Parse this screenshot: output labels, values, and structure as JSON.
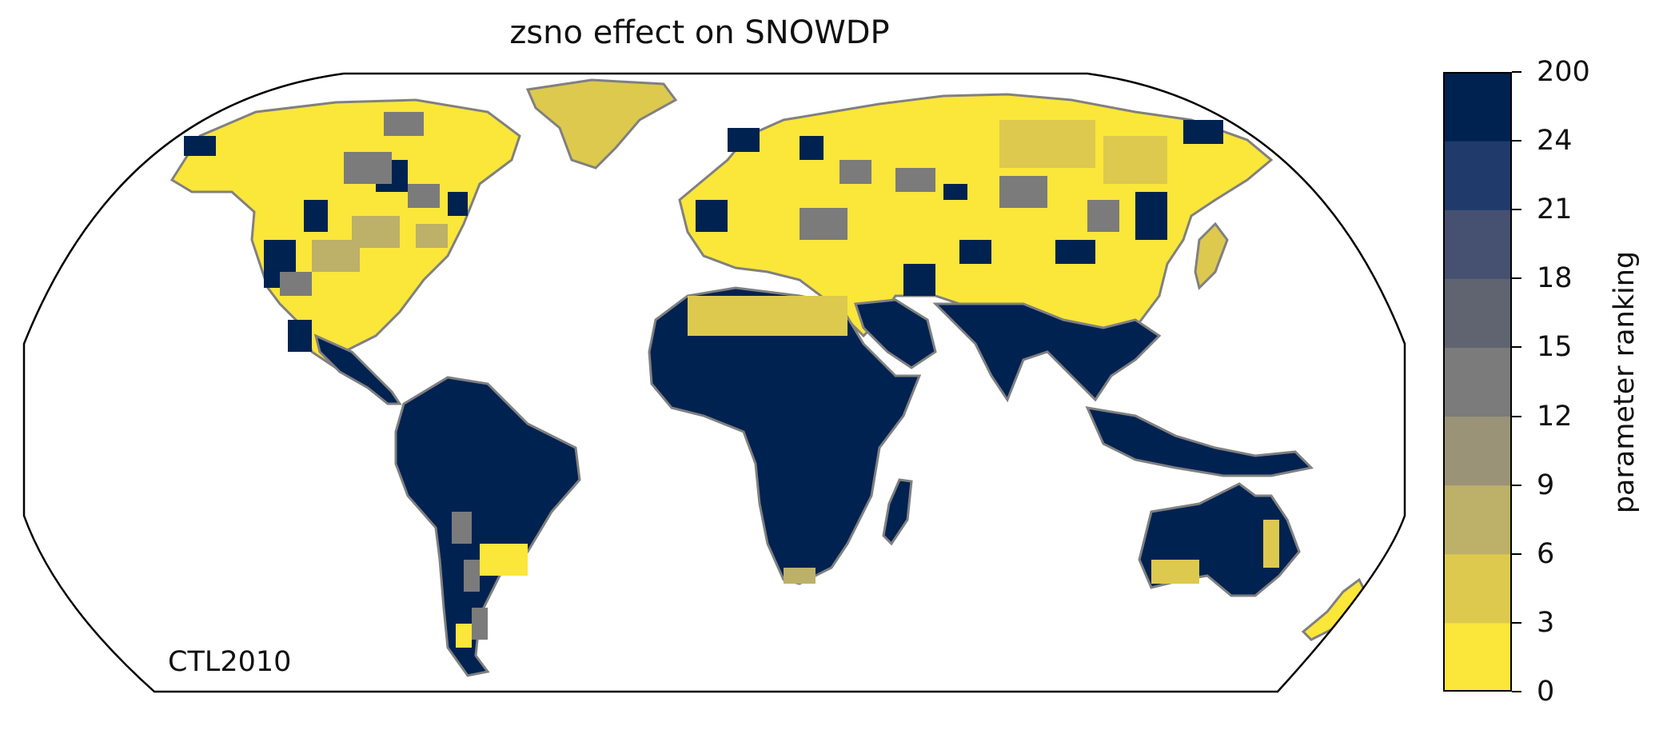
{
  "title": "zsno effect on SNOWDP",
  "experiment_label": "CTL2010",
  "colorbar": {
    "label": "parameter ranking",
    "ticks": [
      "0",
      "3",
      "6",
      "9",
      "12",
      "15",
      "18",
      "21",
      "24",
      "200"
    ],
    "colors": [
      "#fbe63a",
      "#ddc94e",
      "#bdb068",
      "#9a9378",
      "#7b7b7b",
      "#5f6470",
      "#465070",
      "#203a6c",
      "#002251"
    ]
  },
  "map_colors": {
    "ocean": "#ffffff",
    "coastline": "#808080",
    "frame": "#000000"
  },
  "chart_data": {
    "type": "heatmap",
    "projection": "Robinson (global)",
    "title": "zsno effect on SNOWDP",
    "colorbar_label": "parameter ranking",
    "bins": [
      [
        0,
        3
      ],
      [
        3,
        6
      ],
      [
        6,
        9
      ],
      [
        9,
        12
      ],
      [
        12,
        15
      ],
      [
        15,
        18
      ],
      [
        18,
        21
      ],
      [
        21,
        24
      ],
      [
        24,
        200
      ]
    ],
    "regions": [
      {
        "name": "North America",
        "dominant_bins": [
          0,
          1,
          4,
          8
        ]
      },
      {
        "name": "Greenland",
        "dominant_bins": [
          1
        ]
      },
      {
        "name": "Europe",
        "dominant_bins": [
          0,
          4,
          8
        ]
      },
      {
        "name": "Siberia / Northern Asia",
        "dominant_bins": [
          0,
          1,
          2,
          3,
          4,
          8
        ]
      },
      {
        "name": "Sahara",
        "dominant_bins": [
          0,
          1
        ]
      },
      {
        "name": "Africa (south of Sahara)",
        "dominant_bins": [
          8
        ]
      },
      {
        "name": "South America",
        "dominant_bins": [
          8
        ]
      },
      {
        "name": "Patagonia",
        "dominant_bins": [
          0,
          3,
          4,
          6,
          8
        ]
      },
      {
        "name": "South Asia",
        "dominant_bins": [
          8
        ]
      },
      {
        "name": "Maritime Southeast Asia",
        "dominant_bins": [
          8
        ]
      },
      {
        "name": "Australia",
        "dominant_bins": [
          8,
          0,
          1
        ]
      },
      {
        "name": "New Zealand",
        "dominant_bins": [
          0,
          2
        ]
      }
    ]
  }
}
